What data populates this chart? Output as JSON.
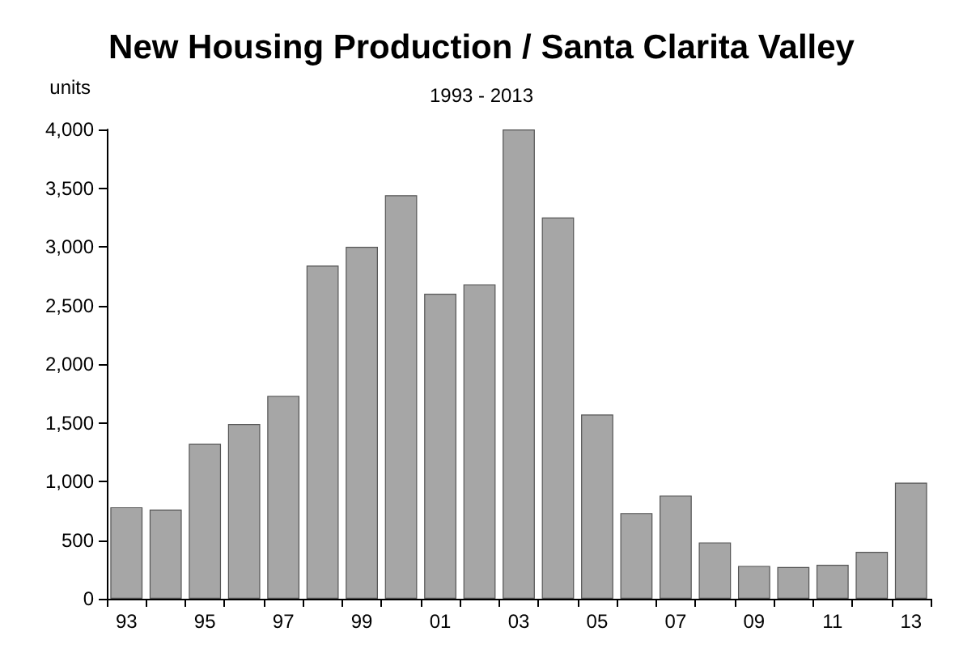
{
  "chart_data": {
    "type": "bar",
    "title": "New Housing Production / Santa Clarita Valley",
    "subtitle": "1993 - 2013",
    "ylabel": "units",
    "categories": [
      "93",
      null,
      "95",
      null,
      "97",
      null,
      "99",
      null,
      "01",
      null,
      "03",
      null,
      "05",
      null,
      "07",
      null,
      "09",
      null,
      "11",
      null,
      "13"
    ],
    "values": [
      780,
      760,
      1320,
      1490,
      1730,
      2840,
      3000,
      3440,
      2600,
      2680,
      4000,
      3250,
      1570,
      730,
      880,
      480,
      280,
      270,
      290,
      400,
      990
    ],
    "color": "#a6a6a6",
    "ylim": [
      0,
      4000
    ],
    "yticks": [
      0,
      500,
      {
        "value": 1000,
        "label": "1,000"
      },
      {
        "value": 1500,
        "label": "1,500"
      },
      {
        "value": 2000,
        "label": "2,000"
      },
      {
        "value": 2500,
        "label": "2,500"
      },
      {
        "value": 3000,
        "label": "3,000"
      },
      {
        "value": 3500,
        "label": "3,500"
      },
      {
        "value": 4000,
        "label": "4,000"
      }
    ],
    "grid": false
  }
}
